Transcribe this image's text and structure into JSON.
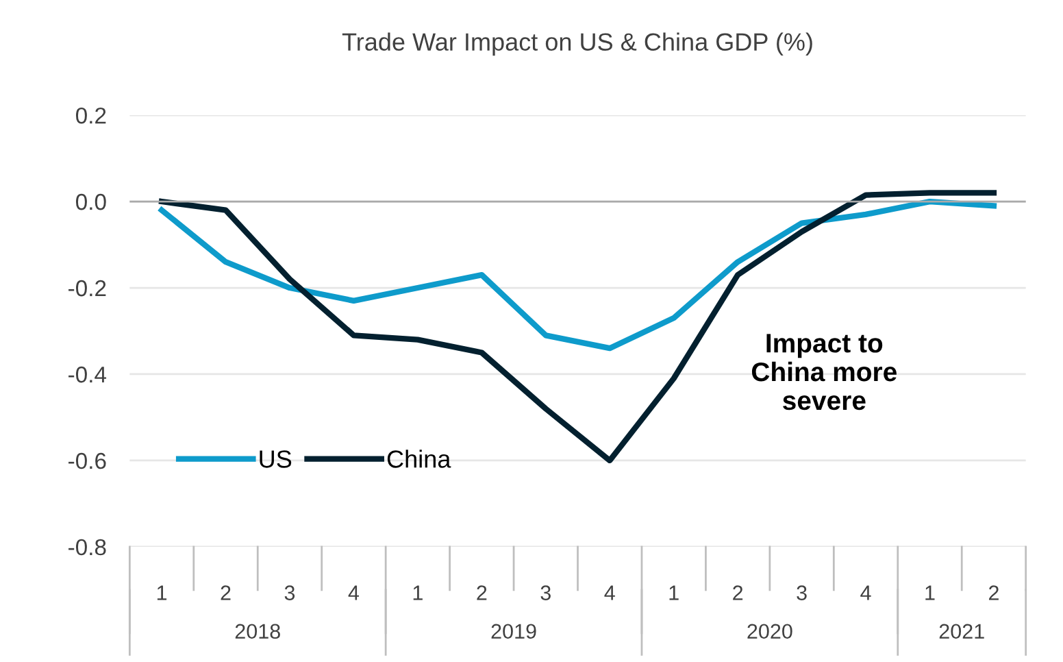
{
  "chart_data": {
    "type": "line",
    "title": "Trade War Impact on US & China GDP (%)",
    "categories": [
      "1",
      "2",
      "3",
      "4",
      "1",
      "2",
      "3",
      "4",
      "1",
      "2",
      "3",
      "4",
      "1",
      "2"
    ],
    "series": [
      {
        "name": "US",
        "color": "#0e9bcb",
        "values": [
          -0.02,
          -0.14,
          -0.2,
          -0.23,
          -0.2,
          -0.17,
          -0.31,
          -0.34,
          -0.27,
          -0.14,
          -0.05,
          -0.03,
          0.0,
          -0.01
        ]
      },
      {
        "name": "China",
        "color": "#03202f",
        "values": [
          0.0,
          -0.02,
          -0.18,
          -0.31,
          -0.32,
          -0.35,
          -0.48,
          -0.6,
          -0.41,
          -0.17,
          -0.07,
          0.015,
          0.02,
          0.02
        ]
      }
    ],
    "ylim": [
      -0.8,
      0.2
    ],
    "yticks": [
      {
        "value": -0.8,
        "label": "-0.8"
      },
      {
        "value": -0.6,
        "label": "-0.6"
      },
      {
        "value": -0.4,
        "label": "-0.4"
      },
      {
        "value": -0.2,
        "label": "-0.2"
      },
      {
        "value": 0.0,
        "label": "0.0"
      },
      {
        "value": 0.2,
        "label": "0.2"
      }
    ],
    "grid": "y",
    "legend": "bottom left",
    "marker": "none",
    "line_style": "solid",
    "annotations": [
      "Impact to China more severe",
      "2018",
      "2019",
      "2020",
      "2021"
    ]
  }
}
